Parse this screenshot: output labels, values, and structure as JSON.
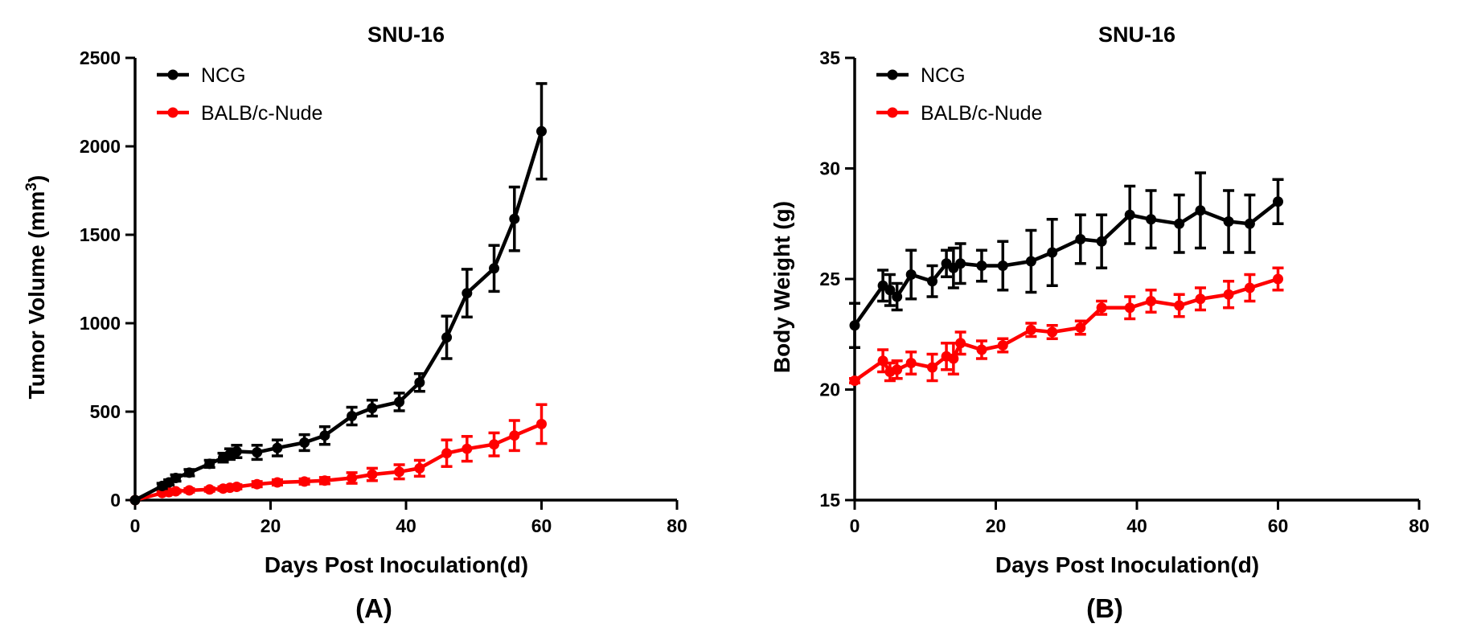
{
  "chart_data": [
    {
      "type": "line",
      "panel_label": "(A)",
      "title": "SNU-16",
      "xlabel": "Days Post  Inoculation(d)",
      "ylabel_main": "Tumor Volume (mm",
      "ylabel_sup": "3",
      "ylabel_end": ")",
      "xlim": [
        0,
        80
      ],
      "ylim": [
        0,
        2500
      ],
      "xticks": [
        0,
        20,
        40,
        60,
        80
      ],
      "yticks": [
        0,
        500,
        1000,
        1500,
        2000,
        2500
      ],
      "grid": false,
      "legend_position": "top-left",
      "series": [
        {
          "name": "NCG",
          "color": "#000000",
          "x": [
            0,
            4,
            5,
            6,
            8,
            11,
            13,
            14,
            15,
            18,
            21,
            25,
            28,
            32,
            35,
            39,
            42,
            46,
            49,
            53,
            56,
            60
          ],
          "y": [
            0,
            80,
            100,
            125,
            155,
            205,
            240,
            260,
            275,
            270,
            295,
            325,
            365,
            475,
            520,
            555,
            665,
            920,
            1170,
            1310,
            1590,
            2085
          ],
          "err": [
            0,
            15,
            15,
            18,
            18,
            20,
            25,
            30,
            35,
            40,
            45,
            45,
            50,
            50,
            45,
            50,
            50,
            120,
            135,
            130,
            180,
            270
          ]
        },
        {
          "name": "BALB/c-Nude",
          "color": "#ff0000",
          "x": [
            0,
            4,
            5,
            6,
            8,
            11,
            13,
            14,
            15,
            18,
            21,
            25,
            28,
            32,
            35,
            39,
            42,
            46,
            49,
            53,
            56,
            60
          ],
          "y": [
            0,
            40,
            45,
            50,
            55,
            60,
            65,
            70,
            75,
            90,
            100,
            105,
            110,
            125,
            145,
            160,
            180,
            265,
            290,
            315,
            365,
            430
          ],
          "err": [
            0,
            8,
            8,
            8,
            10,
            10,
            10,
            12,
            12,
            15,
            15,
            15,
            18,
            30,
            35,
            40,
            45,
            75,
            70,
            65,
            85,
            110
          ]
        }
      ]
    },
    {
      "type": "line",
      "panel_label": "(B)",
      "title": "SNU-16",
      "xlabel": "Days Post  Inoculation(d)",
      "ylabel_main": "Body Weight (g)",
      "ylabel_sup": "",
      "ylabel_end": "",
      "xlim": [
        0,
        80
      ],
      "ylim": [
        15,
        35
      ],
      "xticks": [
        0,
        20,
        40,
        60,
        80
      ],
      "yticks": [
        15,
        20,
        25,
        30,
        35
      ],
      "grid": false,
      "legend_position": "top-left",
      "series": [
        {
          "name": "NCG",
          "color": "#000000",
          "x": [
            0,
            4,
            5,
            6,
            8,
            11,
            13,
            14,
            15,
            18,
            21,
            25,
            28,
            32,
            35,
            39,
            42,
            46,
            49,
            53,
            56,
            60
          ],
          "y": [
            22.9,
            24.7,
            24.5,
            24.2,
            25.2,
            24.9,
            25.7,
            25.5,
            25.7,
            25.6,
            25.6,
            25.8,
            26.2,
            26.8,
            26.7,
            27.9,
            27.7,
            27.5,
            28.1,
            27.6,
            27.5,
            28.5
          ],
          "err": [
            1.0,
            0.7,
            0.7,
            0.6,
            1.1,
            0.7,
            0.6,
            0.9,
            0.9,
            0.7,
            1.1,
            1.4,
            1.5,
            1.1,
            1.2,
            1.3,
            1.3,
            1.3,
            1.7,
            1.4,
            1.3,
            1.0
          ]
        },
        {
          "name": "BALB/c-Nude",
          "color": "#ff0000",
          "x": [
            0,
            4,
            5,
            6,
            8,
            11,
            13,
            14,
            15,
            18,
            21,
            25,
            28,
            32,
            35,
            39,
            42,
            46,
            49,
            53,
            56,
            60
          ],
          "y": [
            20.4,
            21.3,
            20.8,
            20.9,
            21.2,
            21.0,
            21.5,
            21.4,
            22.1,
            21.8,
            22.0,
            22.7,
            22.6,
            22.8,
            23.7,
            23.7,
            24.0,
            23.8,
            24.1,
            24.3,
            24.6,
            25.0
          ],
          "err": [
            0.1,
            0.5,
            0.4,
            0.4,
            0.5,
            0.6,
            0.6,
            0.7,
            0.5,
            0.4,
            0.3,
            0.3,
            0.3,
            0.3,
            0.3,
            0.5,
            0.5,
            0.5,
            0.5,
            0.6,
            0.6,
            0.5
          ]
        }
      ]
    }
  ]
}
